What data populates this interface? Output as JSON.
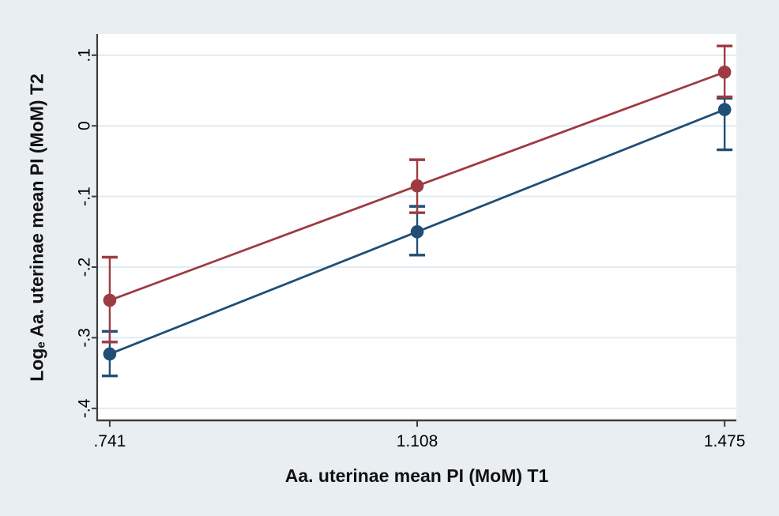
{
  "figure": {
    "background_color": "#e8eef1",
    "plot_background": "#ffffff",
    "grid_color": "#e2ecf3",
    "axis_color": "#3d3d3d",
    "text_color": "#000000"
  },
  "chart_data": {
    "type": "line",
    "title": "",
    "xlabel": "Aa. uterinae mean PI (MoM) T1",
    "ylabel_prefix": "Log",
    "ylabel_subscript": "e",
    "ylabel_rest": " Aa. uterinae mean PI (MoM) T2",
    "x_ticks": [
      0.741,
      1.108,
      1.475
    ],
    "x_tick_labels": [
      ".741",
      "1.108",
      "1.475"
    ],
    "y_ticks": [
      0.1,
      0,
      -0.1,
      -0.2,
      -0.3,
      -0.4
    ],
    "y_tick_labels": [
      ".1",
      "0",
      "-.1",
      "-.2",
      "-.3",
      "-.4"
    ],
    "xlim": [
      0.726,
      1.489
    ],
    "ylim": [
      -0.417,
      0.13
    ],
    "grid": "horizontal-only",
    "legend_position": "none",
    "series": [
      {
        "name": "upper-maroon-series",
        "color": "#9e3b42",
        "x": [
          0.741,
          1.108,
          1.475
        ],
        "y": [
          -0.247,
          -0.085,
          0.076
        ],
        "ci_high": [
          -0.186,
          -0.048,
          0.113
        ],
        "ci_low": [
          -0.306,
          -0.123,
          0.041
        ]
      },
      {
        "name": "lower-navy-series",
        "color": "#204e76",
        "x": [
          0.741,
          1.108,
          1.475
        ],
        "y": [
          -0.323,
          -0.15,
          0.023
        ],
        "ci_high": [
          -0.291,
          -0.114,
          0.039
        ],
        "ci_low": [
          -0.354,
          -0.183,
          -0.034
        ]
      }
    ]
  }
}
